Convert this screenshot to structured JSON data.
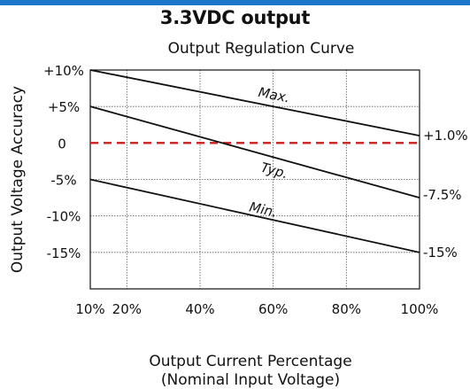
{
  "header": {
    "title": "3.3VDC output",
    "bar_color": "#1976c9"
  },
  "chart_data": {
    "type": "line",
    "title": "Output Regulation Curve",
    "xlabel": "Output Current Percentage",
    "xlabel_sub": "(Nominal Input Voltage)",
    "ylabel": "Output Voltage Accuracy",
    "xlim": [
      10,
      100
    ],
    "ylim": [
      -20,
      10
    ],
    "x_ticks": [
      {
        "value": 10,
        "label": "10%"
      },
      {
        "value": 20,
        "label": "20%"
      },
      {
        "value": 40,
        "label": "40%"
      },
      {
        "value": 60,
        "label": "60%"
      },
      {
        "value": 80,
        "label": "80%"
      },
      {
        "value": 100,
        "label": "100%"
      }
    ],
    "y_ticks": [
      {
        "value": 10,
        "label": "+10%"
      },
      {
        "value": 5,
        "label": "+5%"
      },
      {
        "value": 0,
        "label": "0"
      },
      {
        "value": -5,
        "label": "-5%"
      },
      {
        "value": -10,
        "label": "-10%"
      },
      {
        "value": -15,
        "label": "-15%"
      }
    ],
    "grid": true,
    "series": [
      {
        "name": "Max.",
        "x": [
          10,
          100
        ],
        "y": [
          10,
          1.0
        ],
        "color": "#111111",
        "dash": false,
        "end_label": "+1.0%"
      },
      {
        "name": "Typ.",
        "x": [
          10,
          100
        ],
        "y": [
          5,
          -7.5
        ],
        "color": "#111111",
        "dash": false,
        "end_label": "-7.5%"
      },
      {
        "name": "Min.",
        "x": [
          10,
          100
        ],
        "y": [
          -5,
          -15
        ],
        "color": "#111111",
        "dash": false,
        "end_label": "-15%"
      }
    ],
    "reference_line": {
      "y": 0,
      "color": "#cc1f1f",
      "dash": true
    }
  }
}
